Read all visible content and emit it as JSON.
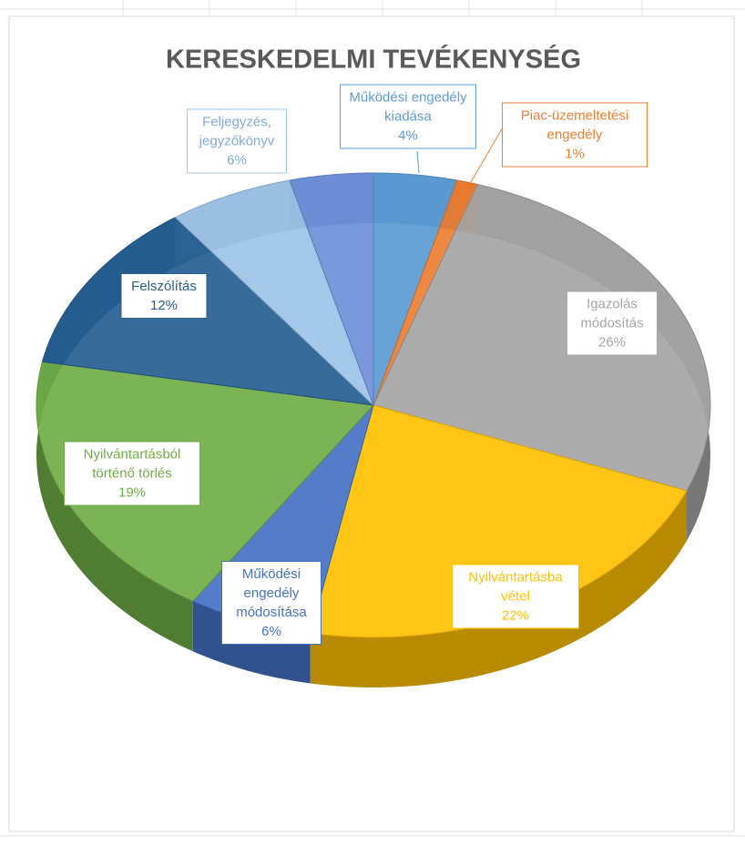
{
  "chart_data": {
    "type": "pie",
    "title": "KERESKEDELMI TEVÉKENYSÉG",
    "categories": [
      "Működési engedély kiadása",
      "Piac-üzemeltetési engedély",
      "Igazolás módosítás",
      "Nyilvántartásba vétel",
      "Működési engedély módosítása",
      "Nyilvántartásból történő törlés",
      "Felszólítás",
      "Feljegyzés, jegyzőkönyv",
      null
    ],
    "values": [
      4,
      1,
      26,
      22,
      6,
      19,
      12,
      6,
      4
    ],
    "value_labels": [
      "4%",
      "1%",
      "26%",
      "22%",
      "6%",
      "19%",
      "12%",
      "6%",
      null
    ],
    "colors": [
      "#5b9bd5",
      "#ed7d31",
      "#a5a5a5",
      "#ffc000",
      "#4472c4",
      "#70ad47",
      "#255e91",
      "#9dc3e6",
      "#6f8fd8"
    ]
  }
}
